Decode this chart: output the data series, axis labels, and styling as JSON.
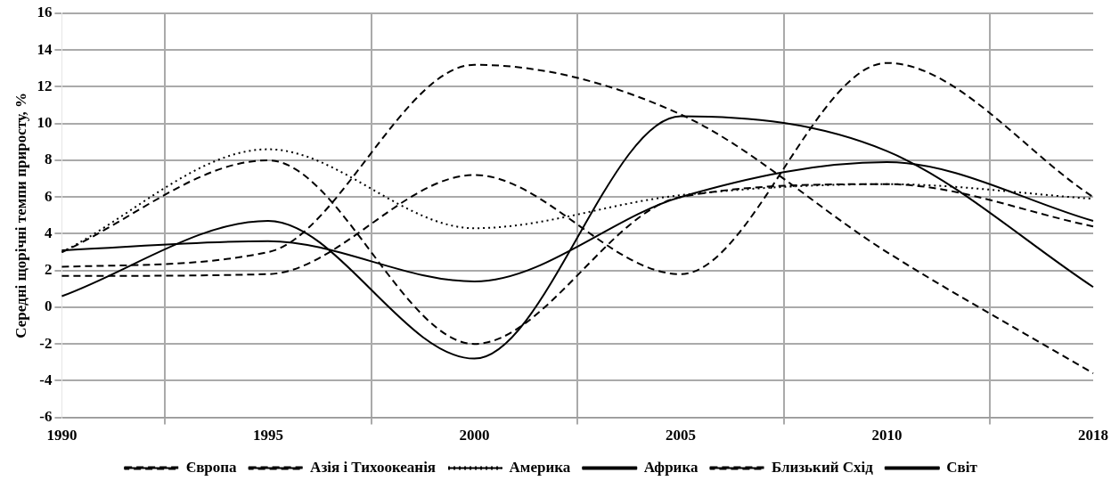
{
  "chart_data": {
    "type": "line",
    "ylabel": "Середні щорічні темпи приросту, %",
    "categories": [
      "1990",
      "1995",
      "2000",
      "2005",
      "2010",
      "2018"
    ],
    "ylim": [
      -6,
      16
    ],
    "yticks": [
      -6,
      -4,
      -2,
      0,
      2,
      4,
      6,
      8,
      10,
      12,
      14,
      16
    ],
    "grid": true,
    "legend": "bottom",
    "marker": "none",
    "series": [
      {
        "name": "Європа",
        "color": "#000000",
        "line_style": "dashed",
        "values": [
          3,
          8,
          -2,
          6,
          6.7,
          4.4
        ]
      },
      {
        "name": "Азія і Тихоокеанія",
        "color": "#000000",
        "line_style": "dashed",
        "values": [
          1.7,
          1.8,
          7.2,
          1.8,
          13.3,
          6
        ]
      },
      {
        "name": "Америка",
        "color": "#000000",
        "line_style": "dotted",
        "values": [
          3,
          8.6,
          4.3,
          6.1,
          6.7,
          5.9
        ]
      },
      {
        "name": "Африка",
        "color": "#000000",
        "line_style": "solid",
        "values": [
          0.6,
          4.7,
          -2.8,
          10.4,
          8.5,
          1.1
        ]
      },
      {
        "name": "Близький Схід",
        "color": "#000000",
        "line_style": "dashed",
        "values": [
          2.2,
          3,
          13.2,
          10.5,
          3,
          -3.6
        ]
      },
      {
        "name": "Світ",
        "color": "#000000",
        "line_style": "solid",
        "values": [
          3.1,
          3.6,
          1.4,
          6,
          7.9,
          4.7
        ]
      }
    ]
  }
}
